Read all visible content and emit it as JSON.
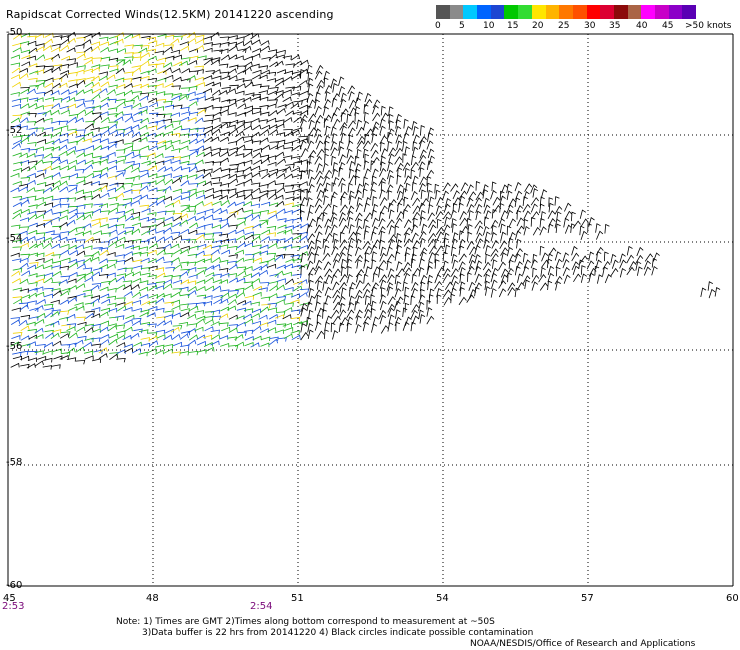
{
  "title": "Rapidscat Corrected Winds(12.5KM) 20141220 ascending",
  "colorbar": {
    "colors": [
      "#555555",
      "#8a8a8a",
      "#00c8ff",
      "#0064ff",
      "#1e46d2",
      "#00c800",
      "#32dc32",
      "#ffe600",
      "#ffb400",
      "#ff7800",
      "#ff5000",
      "#ff0000",
      "#dc0032",
      "#8c0a0a",
      "#aa6446",
      "#ff00ff",
      "#c800c8",
      "#8c00c8",
      "#5a00b4"
    ],
    "labels": [
      "0",
      "5",
      "10",
      "15",
      "20",
      "25",
      "30",
      "35",
      "40",
      "45",
      ">50 knots"
    ]
  },
  "map": {
    "lon_labels": [
      "45",
      "48",
      "51",
      "54",
      "57",
      "60"
    ],
    "lat_labels": [
      "-50",
      "-52",
      "-54",
      "-56",
      "-58",
      "-60"
    ],
    "time_labels": [
      "2:53",
      "2:54"
    ]
  },
  "notes": {
    "line1": "Note: 1) Times are GMT 2)Times along bottom correspond to measurement at ~50S",
    "line2": "3)Data buffer is 22 hrs from 20141220 4) Black circles indicate possible contamination",
    "credit": "NOAA/NESDIS/Office of Research and Applications"
  },
  "legend_colors": {
    "black": "#000000",
    "blue": "#1450dc",
    "green": "#1eb41e",
    "yellow": "#f0d200",
    "orange": "#ff9600"
  }
}
